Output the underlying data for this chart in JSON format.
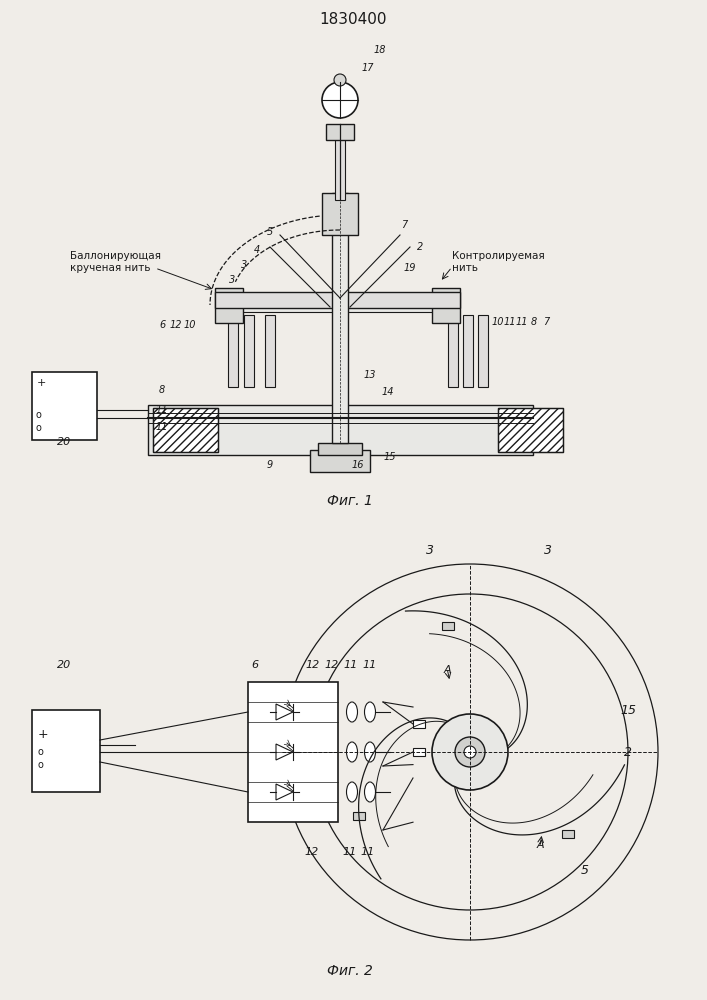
{
  "title": "1830400",
  "fig1_caption": "Фиг. 1",
  "fig2_caption": "Фиг. 2",
  "bg_color": "#f0ede8",
  "line_color": "#1a1a1a",
  "label_ballon": "Баллонирующая\nкрученая нить",
  "label_control": "Контролируемая\nнить"
}
